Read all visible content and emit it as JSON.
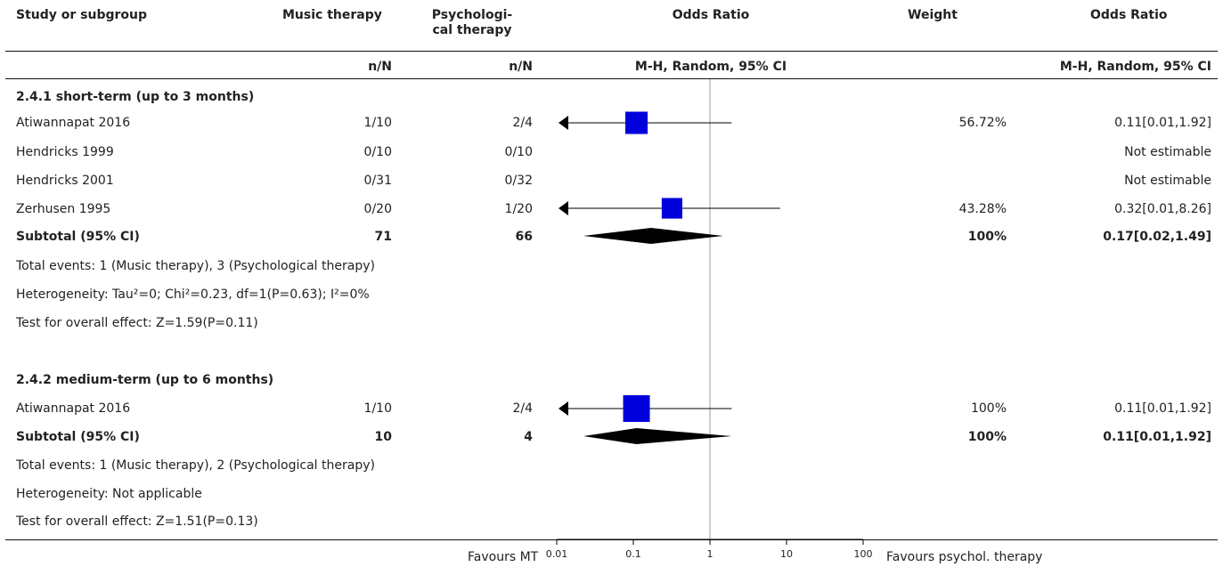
{
  "header": {
    "study": "Study or subgroup",
    "group1": "Music therapy",
    "group2_line1": "Psychologi-",
    "group2_line2": "cal therapy",
    "plot_title": "Odds Ratio",
    "weight": "Weight",
    "result_title": "Odds Ratio",
    "nN1": "n/N",
    "nN2": "n/N",
    "plot_method": "M-H, Random, 95% CI",
    "result_method": "M-H, Random, 95% CI"
  },
  "footer": {
    "favours_left": "Favours MT",
    "favours_right": "Favours psychol. therapy"
  },
  "chart_data": {
    "type": "forest",
    "measure": "Odds Ratio",
    "method": "M-H, Random, 95% CI",
    "x_scale": "log",
    "x_ticks": [
      0.01,
      0.1,
      1,
      10,
      100
    ],
    "x_tick_labels": [
      "0.01",
      "0.1",
      "1",
      "10",
      "100"
    ],
    "null_line": 1,
    "subgroups": [
      {
        "title": "2.4.1 short-term (up to 3 months)",
        "studies": [
          {
            "name": "Atiwannapat 2016",
            "g1": "1/10",
            "g2": "2/4",
            "or": 0.11,
            "lo": 0.01,
            "hi": 1.92,
            "weight": "56.72%",
            "weight_value": 56.72,
            "result": "0.11[0.01,1.92]",
            "estimable": true
          },
          {
            "name": "Hendricks 1999",
            "g1": "0/10",
            "g2": "0/10",
            "weight": "",
            "result": "Not estimable",
            "estimable": false
          },
          {
            "name": "Hendricks 2001",
            "g1": "0/31",
            "g2": "0/32",
            "weight": "",
            "result": "Not estimable",
            "estimable": false
          },
          {
            "name": "Zerhusen 1995",
            "g1": "0/20",
            "g2": "1/20",
            "or": 0.32,
            "lo": 0.01,
            "hi": 8.26,
            "weight": "43.28%",
            "weight_value": 43.28,
            "result": "0.32[0.01,8.26]",
            "estimable": true
          }
        ],
        "subtotal": {
          "label": "Subtotal (95% CI)",
          "g1": "71",
          "g2": "66",
          "weight": "100%",
          "or": 0.17,
          "lo": 0.02,
          "hi": 1.49,
          "result": "0.17[0.02,1.49]"
        },
        "notes": [
          "Total events: 1 (Music therapy), 3 (Psychological therapy)",
          "Heterogeneity: Tau²=0; Chi²=0.23, df=1(P=0.63); I²=0%",
          "Test for overall effect: Z=1.59(P=0.11)"
        ]
      },
      {
        "title": "2.4.2 medium-term (up to 6 months)",
        "studies": [
          {
            "name": "Atiwannapat 2016",
            "g1": "1/10",
            "g2": "2/4",
            "or": 0.11,
            "lo": 0.01,
            "hi": 1.92,
            "weight": "100%",
            "weight_value": 100,
            "result": "0.11[0.01,1.92]",
            "estimable": true
          }
        ],
        "subtotal": {
          "label": "Subtotal (95% CI)",
          "g1": "10",
          "g2": "4",
          "weight": "100%",
          "or": 0.11,
          "lo": 0.01,
          "hi": 1.92,
          "result": "0.11[0.01,1.92]"
        },
        "notes": [
          "Total events: 1 (Music therapy), 2 (Psychological therapy)",
          "Heterogeneity: Not applicable",
          "Test for overall effect: Z=1.51(P=0.13)"
        ]
      }
    ],
    "colors": {
      "marker": "#0000dd",
      "diamond": "#000000",
      "axis": "#000000",
      "null_line": "#999999"
    }
  }
}
